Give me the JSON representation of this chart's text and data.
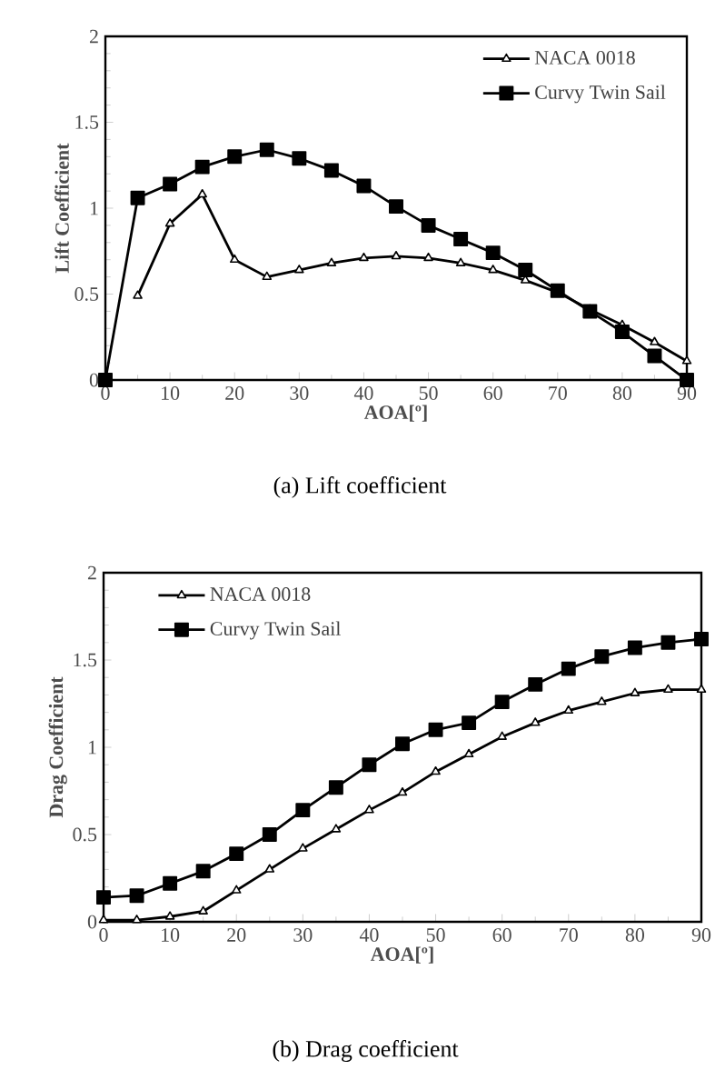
{
  "chart_data": [
    {
      "type": "line",
      "xlabel": "AOA[º]",
      "ylabel": "Lift Coefficient",
      "annotations": [
        "(a) Lift coefficient"
      ],
      "x": [
        0,
        5,
        10,
        15,
        20,
        25,
        30,
        35,
        40,
        45,
        50,
        55,
        60,
        65,
        70,
        75,
        80,
        85,
        90
      ],
      "series": [
        {
          "name": "NACA 0018",
          "color": "#000000",
          "marker": "triangle",
          "values": [
            null,
            0.49,
            0.91,
            1.08,
            0.7,
            0.6,
            0.64,
            0.68,
            0.71,
            0.72,
            0.71,
            0.68,
            0.64,
            0.58,
            0.51,
            0.41,
            0.32,
            0.22,
            0.11
          ]
        },
        {
          "name": "Curvy Twin Sail",
          "color": "#000000",
          "marker": "square",
          "values": [
            0,
            1.06,
            1.14,
            1.24,
            1.3,
            1.34,
            1.29,
            1.22,
            1.13,
            1.01,
            0.9,
            0.82,
            0.74,
            0.64,
            0.52,
            0.4,
            0.28,
            0.14,
            0
          ]
        }
      ],
      "xlim": [
        0,
        90
      ],
      "ylim": [
        0,
        2
      ],
      "xticks": [
        0,
        10,
        20,
        30,
        40,
        50,
        60,
        70,
        80,
        90
      ],
      "yticks": [
        0,
        0.5,
        1,
        1.5,
        2
      ],
      "grid": false,
      "legend": "top right",
      "line_style": "solid"
    },
    {
      "type": "line",
      "xlabel": "AOA[º]",
      "ylabel": "Drag Coefficient",
      "annotations": [
        "(b) Drag coefficient"
      ],
      "x": [
        0,
        5,
        10,
        15,
        20,
        25,
        30,
        35,
        40,
        45,
        50,
        55,
        60,
        65,
        70,
        75,
        80,
        85,
        90
      ],
      "series": [
        {
          "name": "NACA 0018",
          "color": "#000000",
          "marker": "triangle",
          "values": [
            0.01,
            0.01,
            0.03,
            0.06,
            0.18,
            0.3,
            0.42,
            0.53,
            0.64,
            0.74,
            0.86,
            0.96,
            1.06,
            1.14,
            1.21,
            1.26,
            1.31,
            1.33,
            1.33
          ]
        },
        {
          "name": "Curvy Twin Sail",
          "color": "#000000",
          "marker": "square",
          "values": [
            0.14,
            0.15,
            0.22,
            0.29,
            0.39,
            0.5,
            0.64,
            0.77,
            0.9,
            1.02,
            1.1,
            1.14,
            1.26,
            1.36,
            1.45,
            1.52,
            1.57,
            1.6,
            1.62
          ]
        }
      ],
      "xlim": [
        0,
        90
      ],
      "ylim": [
        0,
        2
      ],
      "xticks": [
        0,
        10,
        20,
        30,
        40,
        50,
        60,
        70,
        80,
        90
      ],
      "yticks": [
        0,
        0.5,
        1,
        1.5,
        2
      ],
      "grid": false,
      "legend": "top left",
      "line_style": "solid"
    }
  ]
}
